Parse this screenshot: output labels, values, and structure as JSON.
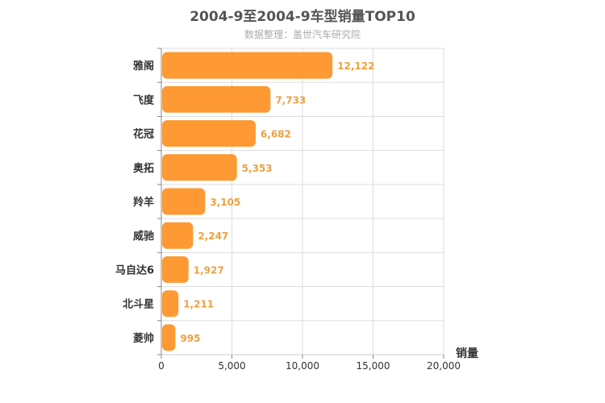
{
  "chart_data": {
    "type": "bar",
    "orientation": "horizontal",
    "title": "2004-9至2004-9车型销量TOP10",
    "subtitle": "数据整理：盖世汽车研究院",
    "categories": [
      "雅阁",
      "飞度",
      "花冠",
      "奥拓",
      "羚羊",
      "威驰",
      "马自达6",
      "北斗星",
      "菱帅"
    ],
    "values": [
      12122,
      7733,
      6682,
      5353,
      3105,
      2247,
      1927,
      1211,
      995
    ],
    "value_labels": [
      "12,122",
      "7,733",
      "6,682",
      "5,353",
      "3,105",
      "2,247",
      "1,927",
      "1,211",
      "995"
    ],
    "xlabel": "销量",
    "xlim": [
      0,
      20000
    ],
    "xticks": [
      0,
      5000,
      10000,
      15000,
      20000
    ],
    "xtick_labels": [
      "0",
      "5,000",
      "10,000",
      "15,000",
      "20,000"
    ],
    "bar_color": "#ff9933",
    "label_color": "#f0a040",
    "grid": true
  }
}
